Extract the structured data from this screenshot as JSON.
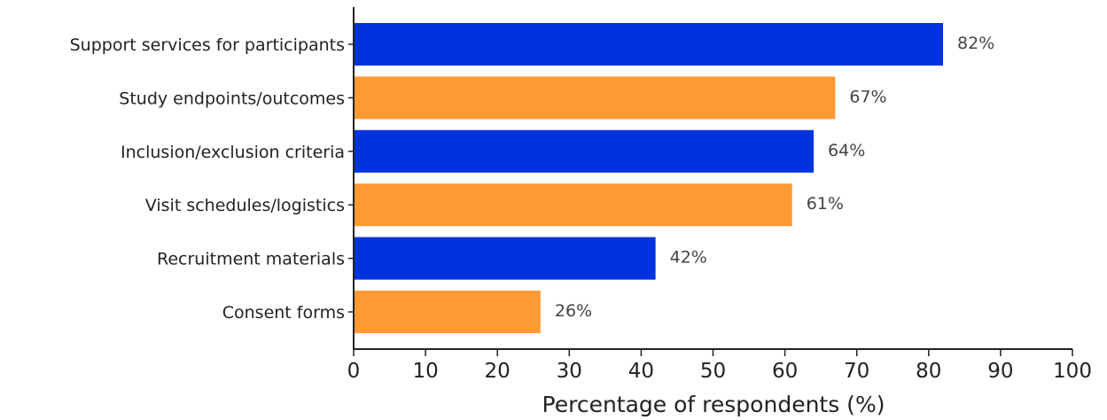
{
  "chart_data": {
    "type": "bar",
    "orientation": "horizontal",
    "title": "",
    "xlabel": "Percentage of respondents (%)",
    "ylabel": "",
    "xlim": [
      0,
      100
    ],
    "x_ticks": [
      0,
      10,
      20,
      30,
      40,
      50,
      60,
      70,
      80,
      90,
      100
    ],
    "grid": false,
    "categories": [
      "Support services for participants",
      "Study endpoints/outcomes",
      "Inclusion/exclusion criteria",
      "Visit schedules/logistics",
      "Recruitment materials",
      "Consent forms"
    ],
    "values": [
      82,
      67,
      64,
      61,
      42,
      26
    ],
    "value_labels": [
      "82%",
      "67%",
      "64%",
      "61%",
      "42%",
      "26%"
    ],
    "bar_colors": [
      "#0033dd",
      "#ff9933",
      "#0033dd",
      "#ff9933",
      "#0033dd",
      "#ff9933"
    ],
    "axis_color": "#222222"
  }
}
